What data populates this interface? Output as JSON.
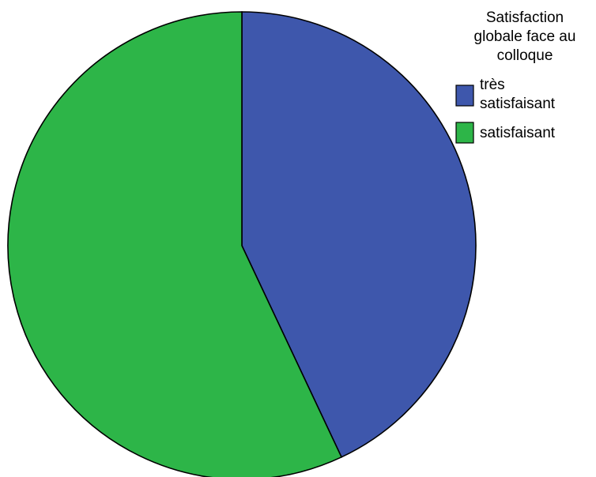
{
  "chart_data": {
    "type": "pie",
    "title": "",
    "legend": {
      "title_lines": [
        "Satisfaction",
        "globale face au",
        "colloque"
      ],
      "placement": "top-right"
    },
    "slices": [
      {
        "label": "très satisfaisant",
        "label_lines": [
          "très",
          "satisfaisant"
        ],
        "value": 43,
        "color": "#3E57AC"
      },
      {
        "label": "satisfaisant",
        "label_lines": [
          "satisfaisant"
        ],
        "value": 57,
        "color": "#2DB548"
      }
    ]
  }
}
